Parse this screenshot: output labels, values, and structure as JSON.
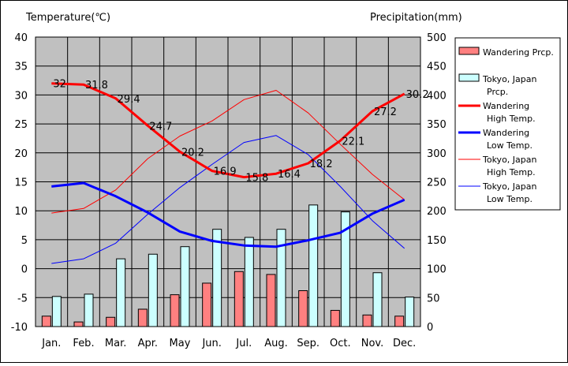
{
  "chart_data": {
    "type": "bar",
    "categories": [
      "Jan.",
      "Feb.",
      "Mar.",
      "Apr.",
      "May",
      "Jun.",
      "Jul.",
      "Aug.",
      "Sep.",
      "Oct.",
      "Nov.",
      "Dec."
    ],
    "y_left_label": "Temperature(℃)",
    "y_right_label": "Precipitation(mm)",
    "y_left_lim": [
      -10,
      40
    ],
    "y_right_lim": [
      0,
      500
    ],
    "y_left_ticks": [
      "-10",
      "-5",
      "0",
      "5",
      "10",
      "15",
      "20",
      "25",
      "30",
      "35",
      "40"
    ],
    "y_right_ticks": [
      "0",
      "50",
      "100",
      "150",
      "200",
      "250",
      "300",
      "350",
      "400",
      "450",
      "500"
    ],
    "plot_background": "#C0C0C0",
    "grid": true,
    "legend_position": "right",
    "series": [
      {
        "name": "Wandering Prcp.",
        "kind": "bar",
        "axis": "right",
        "color": "#FF8080",
        "values": [
          18,
          8,
          16,
          30,
          55,
          75,
          95,
          90,
          62,
          28,
          20,
          18
        ]
      },
      {
        "name": "Tokyo, Japan Prcp.",
        "kind": "bar",
        "axis": "right",
        "color": "#CCFFFF",
        "values": [
          52,
          56,
          117,
          125,
          138,
          168,
          154,
          168,
          210,
          198,
          93,
          51
        ]
      },
      {
        "name": "Wandering High Temp.",
        "kind": "line",
        "axis": "left",
        "color": "#FF0000",
        "width": 3,
        "values": [
          32,
          31.8,
          29.4,
          24.7,
          20.2,
          16.9,
          15.8,
          16.4,
          18.2,
          22.1,
          27.2,
          30.2
        ],
        "labels": [
          "32",
          "31.8",
          "29.4",
          "24.7",
          "20.2",
          "16.9",
          "15.8",
          "16.4",
          "18.2",
          "22.1",
          "27.2",
          "30.2"
        ]
      },
      {
        "name": "Wandering Low Temp.",
        "kind": "line",
        "axis": "left",
        "color": "#0000FF",
        "width": 3,
        "values": [
          14.2,
          14.8,
          12.5,
          9.7,
          6.4,
          4.8,
          4.0,
          3.8,
          4.9,
          6.2,
          9.5,
          11.9
        ]
      },
      {
        "name": "Tokyo, Japan High Temp.",
        "kind": "line",
        "axis": "left",
        "color": "#FF0000",
        "width": 1,
        "values": [
          9.6,
          10.4,
          13.6,
          19.0,
          22.9,
          25.5,
          29.2,
          30.8,
          26.9,
          21.5,
          16.3,
          11.9
        ]
      },
      {
        "name": "Tokyo, Japan Low Temp.",
        "kind": "line",
        "axis": "left",
        "color": "#0000FF",
        "width": 1,
        "values": [
          0.9,
          1.7,
          4.4,
          9.4,
          14.0,
          18.0,
          21.8,
          23.0,
          19.7,
          14.2,
          8.3,
          3.5
        ]
      }
    ],
    "legend": [
      {
        "line1": "Wandering Prcp.",
        "line2": "",
        "swatch": "bar",
        "color": "#FF8080"
      },
      {
        "line1": "Tokyo, Japan",
        "line2": "Prcp.",
        "swatch": "bar",
        "color": "#CCFFFF"
      },
      {
        "line1": "Wandering",
        "line2": "High Temp.",
        "swatch": "line",
        "color": "#FF0000",
        "width": 3
      },
      {
        "line1": "Wandering",
        "line2": "Low Temp.",
        "swatch": "line",
        "color": "#0000FF",
        "width": 3
      },
      {
        "line1": "Tokyo, Japan",
        "line2": "High Temp.",
        "swatch": "line",
        "color": "#FF0000",
        "width": 1
      },
      {
        "line1": "Tokyo, Japan",
        "line2": "Low Temp.",
        "swatch": "line",
        "color": "#0000FF",
        "width": 1
      }
    ]
  }
}
